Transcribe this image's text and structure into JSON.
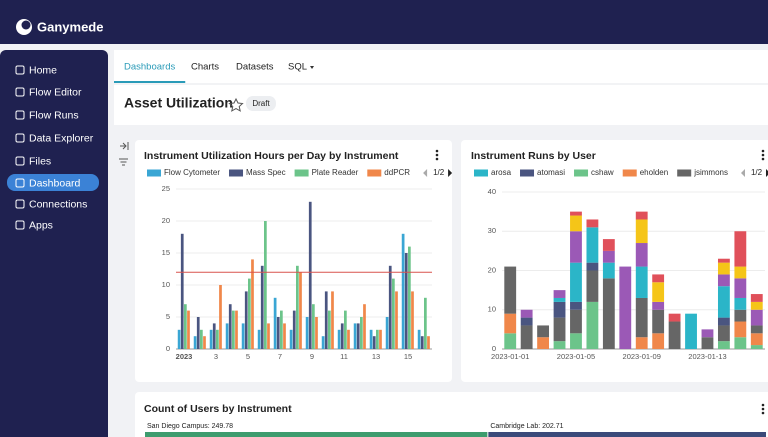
{
  "header": {
    "brand": "Ganymede"
  },
  "nav": {
    "items": [
      "Home",
      "Flow Editor",
      "Flow Runs",
      "Data Explorer",
      "Files",
      "Dashboard",
      "Connections",
      "Apps"
    ],
    "active": 5
  },
  "tabs": {
    "items": [
      "Dashboards",
      "Charts",
      "Datasets",
      "SQL"
    ],
    "active": 0
  },
  "page": {
    "title": "Asset Utilization",
    "badge": "Draft"
  },
  "chart_data": [
    {
      "type": "bar",
      "title": "Instrument Utilization Hours per Day by Instrument",
      "categories": [
        "2023",
        null,
        "3",
        null,
        "5",
        null,
        "7",
        null,
        "9",
        null,
        "11",
        null,
        "13",
        null,
        "15",
        null
      ],
      "series": [
        {
          "name": "Flow Cytometer",
          "color": "#3aa6d4",
          "values": [
            3,
            2,
            3,
            4,
            4,
            3,
            8,
            3,
            5,
            2,
            3,
            4,
            3,
            5,
            18,
            3
          ]
        },
        {
          "name": "Mass Spec",
          "color": "#4a5580",
          "values": [
            18,
            5,
            4,
            7,
            9,
            13,
            5,
            6,
            23,
            9,
            4,
            4,
            2,
            13,
            15,
            2
          ]
        },
        {
          "name": "Plate Reader",
          "color": "#6cc48a",
          "values": [
            7,
            3,
            3,
            6,
            11,
            20,
            6,
            13,
            7,
            6,
            6,
            5,
            3,
            11,
            16,
            8
          ]
        },
        {
          "name": "ddPCR",
          "color": "#f0874a",
          "values": [
            6,
            2,
            10,
            6,
            14,
            4,
            4,
            12,
            5,
            9,
            3,
            7,
            3,
            9,
            9,
            2
          ]
        }
      ],
      "ylim": [
        0,
        25
      ],
      "yticks": [
        0,
        5,
        10,
        15,
        20,
        25
      ],
      "grid": true,
      "reference_line": 12,
      "reference_color": "#d9534f",
      "legend_page": "1/2"
    },
    {
      "type": "stacked_bar",
      "title": "Instrument Runs by User",
      "categories": [
        "2023-01-01",
        null,
        null,
        null,
        "2023-01-05",
        null,
        null,
        null,
        "2023-01-09",
        null,
        null,
        null,
        "2023-01-13",
        null,
        null,
        null
      ],
      "series": [
        {
          "name": "arosa",
          "color": "#2bb5c8",
          "values": [
            0,
            0,
            0,
            1,
            10,
            9,
            4,
            0,
            8,
            0,
            0,
            9,
            0,
            8,
            3,
            0
          ]
        },
        {
          "name": "atomasi",
          "color": "#4a5580",
          "values": [
            0,
            2,
            0,
            4,
            2,
            2,
            0,
            0,
            0,
            0,
            0,
            0,
            0,
            2,
            0,
            0
          ]
        },
        {
          "name": "cshaw",
          "color": "#6cc48a",
          "values": [
            4,
            0,
            0,
            2,
            4,
            12,
            0,
            0,
            0,
            0,
            0,
            0,
            0,
            2,
            3,
            1
          ]
        },
        {
          "name": "eholden",
          "color": "#f0874a",
          "values": [
            5,
            0,
            3,
            0,
            0,
            0,
            0,
            0,
            3,
            4,
            0,
            0,
            0,
            0,
            4,
            3
          ]
        },
        {
          "name": "jsimmons",
          "color": "#666666",
          "values": [
            12,
            6,
            3,
            6,
            6,
            8,
            18,
            0,
            10,
            6,
            7,
            0,
            3,
            4,
            3,
            2
          ]
        },
        {
          "color": "#e0505a",
          "values": [
            0,
            0,
            0,
            0,
            1,
            2,
            3,
            0,
            2,
            2,
            2,
            0,
            0,
            1,
            9,
            2
          ]
        },
        {
          "color": "#9b59b6",
          "values": [
            0,
            2,
            0,
            2,
            8,
            0,
            3,
            21,
            6,
            2,
            0,
            0,
            2,
            3,
            5,
            4
          ]
        },
        {
          "color": "#f5c518",
          "values": [
            0,
            0,
            0,
            0,
            4,
            0,
            0,
            0,
            6,
            5,
            0,
            0,
            0,
            3,
            3,
            2
          ]
        }
      ],
      "stack_order": [
        2,
        3,
        4,
        1,
        0,
        6,
        7,
        5
      ],
      "ylim": [
        0,
        40
      ],
      "yticks": [
        0,
        10,
        20,
        30,
        40
      ],
      "grid": true,
      "legend_page": "1/2"
    },
    {
      "type": "treemap",
      "title": "Count of Users by Instrument",
      "categories": [
        "San Diego Campus",
        "Cambridge Lab"
      ],
      "values": [
        249.78,
        202.71
      ],
      "value_labels": [
        "San Diego Campus: 249.78",
        "Cambridge Lab: 202.71"
      ],
      "colors": [
        "#3d9c6e",
        "#3b4a7a"
      ]
    }
  ]
}
